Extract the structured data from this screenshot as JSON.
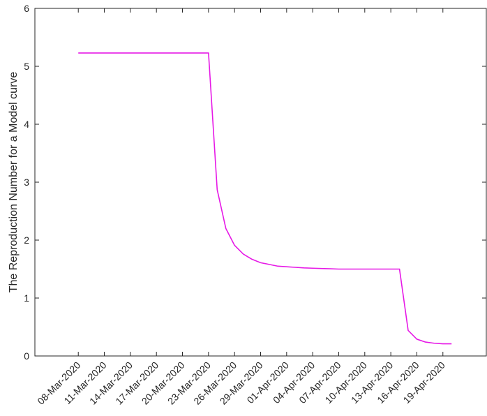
{
  "chart_data": {
    "type": "line",
    "title": "",
    "xlabel": "",
    "ylabel": "The Reproduction Number for a Model curve",
    "x_tick_labels": [
      "08-Mar-2020",
      "11-Mar-2020",
      "14-Mar-2020",
      "17-Mar-2020",
      "20-Mar-2020",
      "23-Mar-2020",
      "26-Mar-2020",
      "29-Mar-2020",
      "01-Apr-2020",
      "04-Apr-2020",
      "07-Apr-2020",
      "10-Apr-2020",
      "13-Apr-2020",
      "16-Apr-2020",
      "19-Apr-2020"
    ],
    "x_tick_values": [
      "2020-03-08",
      "2020-03-11",
      "2020-03-14",
      "2020-03-17",
      "2020-03-20",
      "2020-03-23",
      "2020-03-26",
      "2020-03-29",
      "2020-04-01",
      "2020-04-04",
      "2020-04-07",
      "2020-04-10",
      "2020-04-13",
      "2020-04-16",
      "2020-04-19"
    ],
    "xlim": [
      "2020-03-03",
      "2020-04-24"
    ],
    "ylim": [
      0,
      6
    ],
    "y_ticks": [
      0,
      1,
      2,
      3,
      4,
      5,
      6
    ],
    "grid": false,
    "legend": "none",
    "series": [
      {
        "color": "#e619e6",
        "x": [
          "2020-03-08",
          "2020-03-23",
          "2020-03-24",
          "2020-03-25",
          "2020-03-26",
          "2020-03-27",
          "2020-03-28",
          "2020-03-29",
          "2020-03-30",
          "2020-03-31",
          "2020-04-01",
          "2020-04-02",
          "2020-04-03",
          "2020-04-04",
          "2020-04-05",
          "2020-04-06",
          "2020-04-07",
          "2020-04-14",
          "2020-04-15",
          "2020-04-16",
          "2020-04-17",
          "2020-04-18",
          "2020-04-19",
          "2020-04-20"
        ],
        "y": [
          5.23,
          5.23,
          2.87,
          2.2,
          1.91,
          1.76,
          1.67,
          1.61,
          1.58,
          1.55,
          1.54,
          1.53,
          1.52,
          1.515,
          1.51,
          1.505,
          1.5,
          1.5,
          0.44,
          0.29,
          0.24,
          0.22,
          0.21,
          0.21
        ]
      }
    ]
  }
}
